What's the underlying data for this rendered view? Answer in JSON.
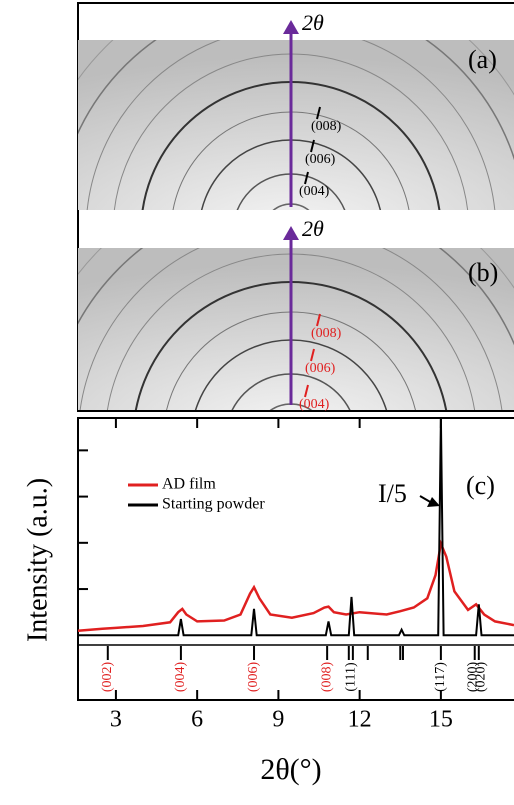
{
  "panels": [
    {
      "label": "(a)",
      "axis_label": "2θ",
      "peaks": [
        "(004)",
        "(006)",
        "(008)"
      ],
      "peak_color": "#000000"
    },
    {
      "label": "(b)",
      "axis_label": "2θ",
      "peaks": [
        "(004)",
        "(006)",
        "(008)"
      ],
      "peak_color": "#e02020"
    }
  ],
  "chart_data": {
    "type": "line",
    "label": "(c)",
    "x_label": "2θ(°)",
    "y_label": "Intensity (a.u.)",
    "xlim": [
      1.6,
      17.7
    ],
    "xticks": [
      3,
      6,
      9,
      12,
      15
    ],
    "ylim": [
      -1.4,
      4.7
    ],
    "yticks": [
      1,
      2,
      3,
      4
    ],
    "annotation": "I/5",
    "series": [
      {
        "name": "AD film",
        "color": "#e02020",
        "x": [
          1.6,
          2.5,
          3,
          4,
          5,
          5.3,
          5.45,
          5.6,
          6,
          7,
          7.6,
          7.95,
          8.1,
          8.3,
          8.7,
          9.5,
          10.3,
          10.7,
          10.85,
          11.05,
          11.5,
          12,
          13,
          13.5,
          14,
          14.5,
          14.8,
          15,
          15.2,
          15.5,
          16,
          16.3,
          16.6,
          17,
          17.7
        ],
        "values": [
          0.1,
          0.14,
          0.16,
          0.2,
          0.28,
          0.5,
          0.57,
          0.45,
          0.3,
          0.32,
          0.45,
          0.9,
          1.04,
          0.8,
          0.45,
          0.38,
          0.48,
          0.6,
          0.62,
          0.5,
          0.45,
          0.5,
          0.45,
          0.52,
          0.6,
          0.8,
          1.3,
          1.98,
          1.7,
          0.95,
          0.55,
          0.67,
          0.45,
          0.3,
          0.22
        ]
      },
      {
        "name": "Starting powder",
        "color": "#000000",
        "x": [
          1.6,
          5.3,
          5.4,
          5.5,
          8.0,
          8.1,
          8.2,
          10.75,
          10.85,
          10.95,
          11.6,
          11.7,
          11.8,
          13.45,
          13.55,
          13.65,
          14.9,
          15.0,
          15.1,
          16.3,
          16.4,
          16.5,
          17.7
        ],
        "values": [
          0,
          0,
          0.35,
          0,
          0,
          0.57,
          0,
          0,
          0.3,
          0,
          0,
          0.83,
          0,
          0,
          0.12,
          0,
          0,
          4.7,
          0,
          0,
          0.67,
          0,
          0
        ]
      }
    ],
    "reference_positions": [
      2.7,
      5.4,
      8.1,
      10.8,
      11.6,
      11.75,
      12.3,
      13.5,
      13.6,
      15.0,
      16.25,
      16.4
    ],
    "reference_labels": [
      {
        "x": 2.7,
        "text": "(002)",
        "color": "#e02020"
      },
      {
        "x": 5.4,
        "text": "(004)",
        "color": "#e02020"
      },
      {
        "x": 8.1,
        "text": "(006)",
        "color": "#e02020"
      },
      {
        "x": 10.8,
        "text": "(008)",
        "color": "#e02020"
      },
      {
        "x": 11.7,
        "text": "(111)",
        "color": "#000000"
      },
      {
        "x": 15.0,
        "text": "(117)",
        "color": "#000000"
      },
      {
        "x": 16.2,
        "text": "(200)",
        "color": "#000000"
      },
      {
        "x": 16.5,
        "text": "(020)",
        "color": "#000000"
      }
    ]
  }
}
